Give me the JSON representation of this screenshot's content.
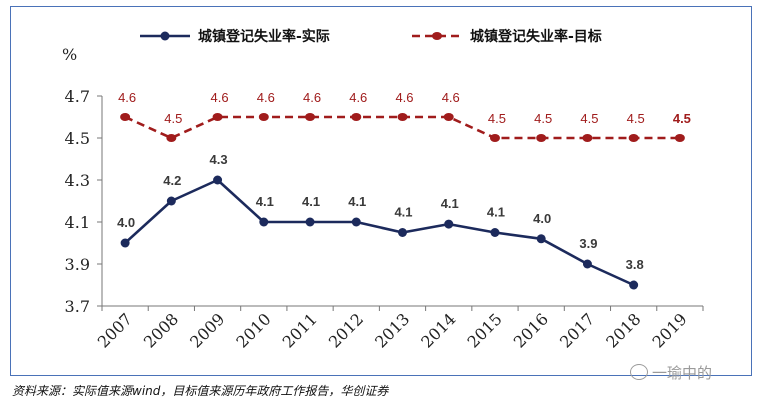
{
  "chart_data": {
    "type": "line",
    "title": "",
    "ylabel": "%",
    "xlabel": "",
    "ylim": [
      3.7,
      4.7
    ],
    "yticks": [
      "3.7",
      "3.9",
      "4.1",
      "4.3",
      "4.5",
      "4.7"
    ],
    "ytick_values": [
      3.7,
      3.9,
      4.1,
      4.3,
      4.5,
      4.7
    ],
    "categories": [
      "2007",
      "2008",
      "2009",
      "2010",
      "2011",
      "2012",
      "2013",
      "2014",
      "2015",
      "2016",
      "2017",
      "2018",
      "2019"
    ],
    "legend_position": "top",
    "grid": false,
    "series": [
      {
        "name": "城镇登记失业率-实际",
        "style": "solid",
        "color": "#1c2a5c",
        "values": [
          4.0,
          4.2,
          4.3,
          4.1,
          4.1,
          4.1,
          4.05,
          4.09,
          4.05,
          4.02,
          3.9,
          3.8,
          null
        ],
        "labels": [
          "4.0",
          "4.2",
          "4.3",
          "4.1",
          "4.1",
          "4.1",
          "4.1",
          "4.1",
          "4.1",
          "4.0",
          "3.9",
          "3.8",
          ""
        ]
      },
      {
        "name": "城镇登记失业率-目标",
        "style": "dashed",
        "color": "#a01c1c",
        "values": [
          4.6,
          4.5,
          4.6,
          4.6,
          4.6,
          4.6,
          4.6,
          4.6,
          4.5,
          4.5,
          4.5,
          4.5,
          4.5
        ],
        "labels": [
          "4.6",
          "4.5",
          "4.6",
          "4.6",
          "4.6",
          "4.6",
          "4.6",
          "4.6",
          "4.5",
          "4.5",
          "4.5",
          "4.5",
          "4.5"
        ]
      }
    ]
  },
  "source_note": "资料来源：实际值来源wind，目标值来源历年政府工作报告，华创证券",
  "watermark": "一瑜中的",
  "colors": {
    "frame": "#4a72b8",
    "axis": "#777777"
  }
}
